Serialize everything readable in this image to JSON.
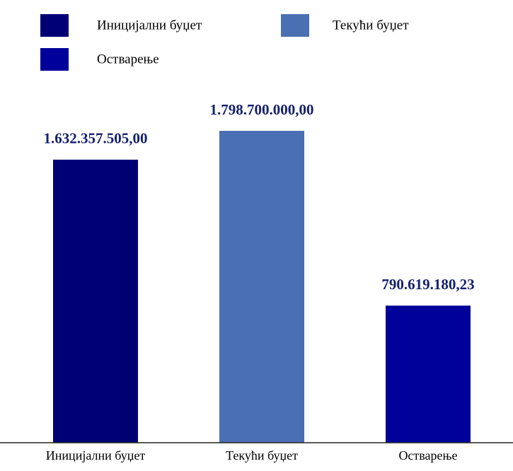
{
  "chart_data": {
    "type": "bar",
    "categories": [
      "Иницијални буџет",
      "Текући буџет",
      "Остварење"
    ],
    "values": [
      1632357505.0,
      1798700000.0,
      790619180.23
    ],
    "value_labels": [
      "1.632.357.505,00",
      "1.798.700.000,00",
      "790.619.180,23"
    ],
    "colors": [
      "#000075",
      "#4a6fb2",
      "#00009a"
    ]
  }
}
